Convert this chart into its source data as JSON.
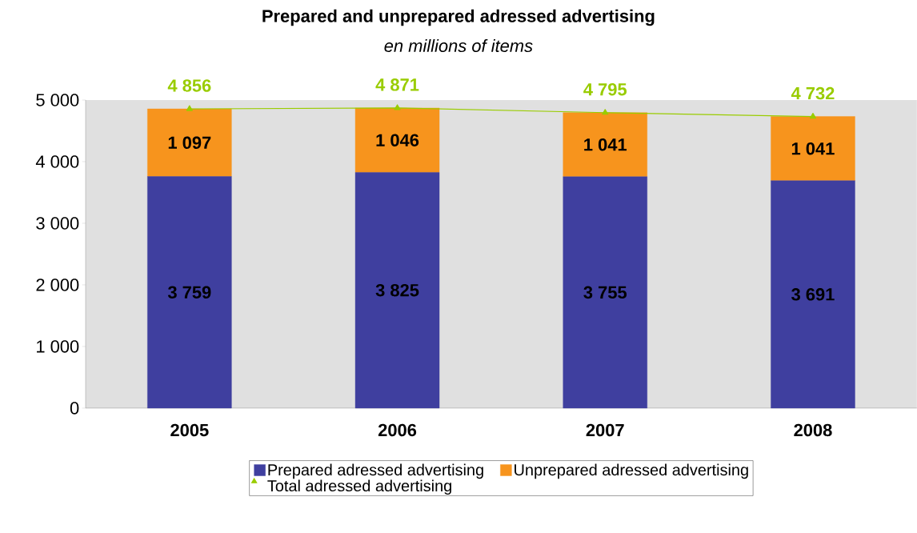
{
  "chart_data": {
    "type": "bar",
    "title": "Prepared and unprepared adressed advertising",
    "subtitle": "en millions of items",
    "categories": [
      "2005",
      "2006",
      "2007",
      "2008"
    ],
    "stacked": true,
    "series": [
      {
        "name": "Prepared adressed advertising",
        "color": "#3f3f9f",
        "values": [
          3759,
          3825,
          3755,
          3691
        ],
        "value_labels": [
          "3 759",
          "3 825",
          "3 755",
          "3 691"
        ]
      },
      {
        "name": "Unprepared adressed advertising",
        "color": "#f7941d",
        "values": [
          1097,
          1046,
          1041,
          1041
        ],
        "value_labels": [
          "1 097",
          "1 046",
          "1 041",
          "1 041"
        ]
      },
      {
        "name": "Total adressed advertising",
        "type": "line",
        "marker": "triangle",
        "color": "#99cc00",
        "values": [
          4856,
          4871,
          4795,
          4732
        ],
        "value_labels": [
          "4 856",
          "4 871",
          "4 795",
          "4 732"
        ]
      }
    ],
    "ylim": [
      0,
      5000
    ],
    "yticks": [
      {
        "value": 0,
        "label": "0"
      },
      {
        "value": 1000,
        "label": "1 000"
      },
      {
        "value": 2000,
        "label": "2 000"
      },
      {
        "value": 3000,
        "label": "3 000"
      },
      {
        "value": 4000,
        "label": "4 000"
      },
      {
        "value": 5000,
        "label": "5 000"
      }
    ],
    "grid": false,
    "legend": "bottom"
  }
}
